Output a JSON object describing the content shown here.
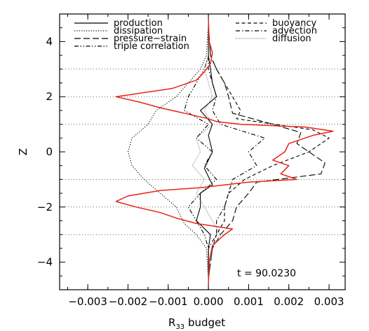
{
  "chart_data": {
    "type": "line",
    "title": "",
    "xlabel": "R",
    "xlabel_subscript": "33",
    "xlabel_suffix": " budget",
    "ylabel": "Z",
    "xlim": [
      -0.0037,
      0.0034
    ],
    "ylim": [
      -5.0,
      5.0
    ],
    "xticks": [
      -0.003,
      -0.002,
      -0.001,
      0.0,
      0.001,
      0.002,
      0.003
    ],
    "xtick_labels": [
      "−0.003",
      "−0.002",
      "−0.001",
      "0.000",
      "0.001",
      "0.002",
      "0.003"
    ],
    "yticks": [
      -4,
      -2,
      0,
      2,
      4
    ],
    "ytick_labels": [
      "−4",
      "−2",
      "0",
      "2",
      "4"
    ],
    "grid": "horizontal dotted",
    "hlines": [
      -3,
      -2,
      -1,
      0,
      1,
      2,
      3
    ],
    "annotation": "t = 90.0230",
    "legend_position": "top",
    "legend_left": [
      "production",
      "dissipation",
      "pressure−strain",
      "triple correlation"
    ],
    "legend_right": [
      "buoyancy",
      "advection",
      "diffusion"
    ],
    "series": [
      {
        "name": "production",
        "style": "solid",
        "color": "#000000",
        "y": [
          -4.6,
          -3.5,
          -3.0,
          -2.5,
          -2.0,
          -1.5,
          -1.2,
          -0.6,
          0.0,
          0.6,
          1.0,
          1.5,
          2.0,
          2.5,
          3.0,
          3.5,
          4.6
        ],
        "x": [
          0.0,
          0.0,
          5e-05,
          -0.0003,
          -0.0002,
          -0.0002,
          0.0001,
          -0.0001,
          0.0001,
          0.0,
          0.0001,
          -0.0002,
          0.0002,
          0.0001,
          5e-05,
          0.0,
          0.0
        ]
      },
      {
        "name": "dissipation",
        "style": "dotted",
        "color": "#000000",
        "y": [
          -4.6,
          -3.5,
          -3.0,
          -2.6,
          -2.0,
          -1.5,
          -1.0,
          -0.5,
          0.0,
          0.5,
          1.0,
          1.5,
          2.0,
          2.5,
          3.0,
          3.5,
          4.6
        ],
        "x": [
          0.0,
          -5e-05,
          -0.0003,
          -0.0006,
          -0.0008,
          -0.0012,
          -0.0016,
          -0.0019,
          -0.002,
          -0.0019,
          -0.0015,
          -0.0013,
          -0.0008,
          -0.0005,
          -0.0002,
          -5e-05,
          0.0
        ]
      },
      {
        "name": "pressure−strain",
        "style": "longdash",
        "color": "#000000",
        "y": [
          -4.6,
          -3.5,
          -3.0,
          -2.5,
          -2.0,
          -1.5,
          -1.1,
          -0.8,
          -0.4,
          0.0,
          0.3,
          0.7,
          1.0,
          1.4,
          2.0,
          2.5,
          3.0,
          3.5,
          4.6
        ],
        "x": [
          0.0,
          0.0001,
          0.0003,
          0.0006,
          0.0007,
          0.001,
          0.0012,
          0.0028,
          0.0029,
          0.0025,
          0.0022,
          0.0023,
          0.0016,
          0.0006,
          0.0005,
          0.0004,
          0.0002,
          5e-05,
          0.0
        ]
      },
      {
        "name": "triple correlation",
        "style": "dashdotdot",
        "color": "#000000",
        "y": [
          -4.6,
          -3.5,
          -3.0,
          -2.5,
          -2.0,
          -1.5,
          -1.0,
          -0.5,
          0.0,
          0.5,
          1.0,
          1.5,
          2.0,
          2.5,
          3.0,
          3.5,
          4.6
        ],
        "x": [
          0.0,
          0.0,
          -0.0001,
          -0.0003,
          -0.0005,
          -0.0002,
          0.0002,
          -0.0001,
          0.0001,
          -0.0003,
          0.0,
          -0.0006,
          -0.0005,
          -0.0003,
          -0.0001,
          0.0,
          0.0
        ]
      },
      {
        "name": "buoyancy",
        "style": "shortdash",
        "color": "#000000",
        "y": [
          -4.6,
          -3.5,
          -3.0,
          -2.5,
          -2.0,
          -1.5,
          -1.0,
          -0.5,
          0.0,
          0.5,
          0.8,
          1.2,
          1.5,
          2.0,
          2.5,
          3.0,
          3.5,
          4.6
        ],
        "x": [
          0.0,
          0.0001,
          0.0002,
          0.0004,
          0.0004,
          0.0005,
          0.0009,
          0.0016,
          0.0025,
          0.003,
          0.0026,
          0.0007,
          0.0008,
          0.0006,
          0.0004,
          0.0002,
          5e-05,
          0.0
        ]
      },
      {
        "name": "advection",
        "style": "dashdot",
        "color": "#000000",
        "y": [
          -4.6,
          -3.5,
          -3.0,
          -2.5,
          -2.0,
          -1.5,
          -1.0,
          -0.5,
          0.0,
          0.5,
          1.0,
          1.5,
          2.0,
          2.5,
          3.0,
          3.5,
          4.6
        ],
        "x": [
          0.0,
          0.0,
          0.0002,
          0.0002,
          0.0004,
          0.0005,
          0.0006,
          0.0012,
          0.001,
          0.0014,
          0.0003,
          0.0001,
          0.0002,
          0.0001,
          0.0,
          0.0,
          0.0
        ]
      },
      {
        "name": "diffusion",
        "style": "finedot",
        "color": "#777777",
        "y": [
          -4.6,
          -3.5,
          -3.0,
          -2.5,
          -2.0,
          -1.5,
          -1.0,
          -0.5,
          0.0,
          0.5,
          1.0,
          1.5,
          2.0,
          2.5,
          3.0,
          3.5,
          4.6
        ],
        "x": [
          0.0,
          0.0001,
          0.0003,
          0.0001,
          -0.0001,
          -0.0003,
          -0.0001,
          -0.0004,
          -0.0002,
          -0.0003,
          0.0001,
          -0.0001,
          0.0001,
          0.0,
          -0.0001,
          0.0,
          0.0
        ]
      },
      {
        "name": "",
        "style": "solid",
        "color": "#e8221a",
        "y": [
          -4.8,
          -4.0,
          -3.4,
          -3.0,
          -2.8,
          -2.6,
          -2.4,
          -2.2,
          -2.0,
          -1.8,
          -1.6,
          -1.4,
          -1.3,
          -1.1,
          -1.0,
          -0.8,
          -0.5,
          -0.3,
          0.0,
          0.3,
          0.6,
          0.75,
          0.9,
          1.0,
          1.1,
          1.2,
          1.4,
          1.6,
          1.8,
          2.0,
          2.3,
          2.6,
          2.9,
          3.2,
          3.6,
          4.0,
          4.8
        ],
        "x": [
          0.0,
          2e-05,
          0.0001,
          0.0004,
          0.0006,
          -0.0003,
          -0.0008,
          -0.0012,
          -0.0018,
          -0.0023,
          -0.002,
          -0.0012,
          -0.0002,
          0.001,
          0.0022,
          0.0018,
          0.002,
          0.0016,
          0.0019,
          0.002,
          0.0026,
          0.0031,
          0.0024,
          0.0008,
          0.0002,
          0.0,
          -0.0006,
          -0.0012,
          -0.0017,
          -0.0023,
          -0.0009,
          -0.0003,
          -0.0001,
          5e-05,
          0.0001,
          2e-05,
          0.0
        ]
      }
    ]
  }
}
